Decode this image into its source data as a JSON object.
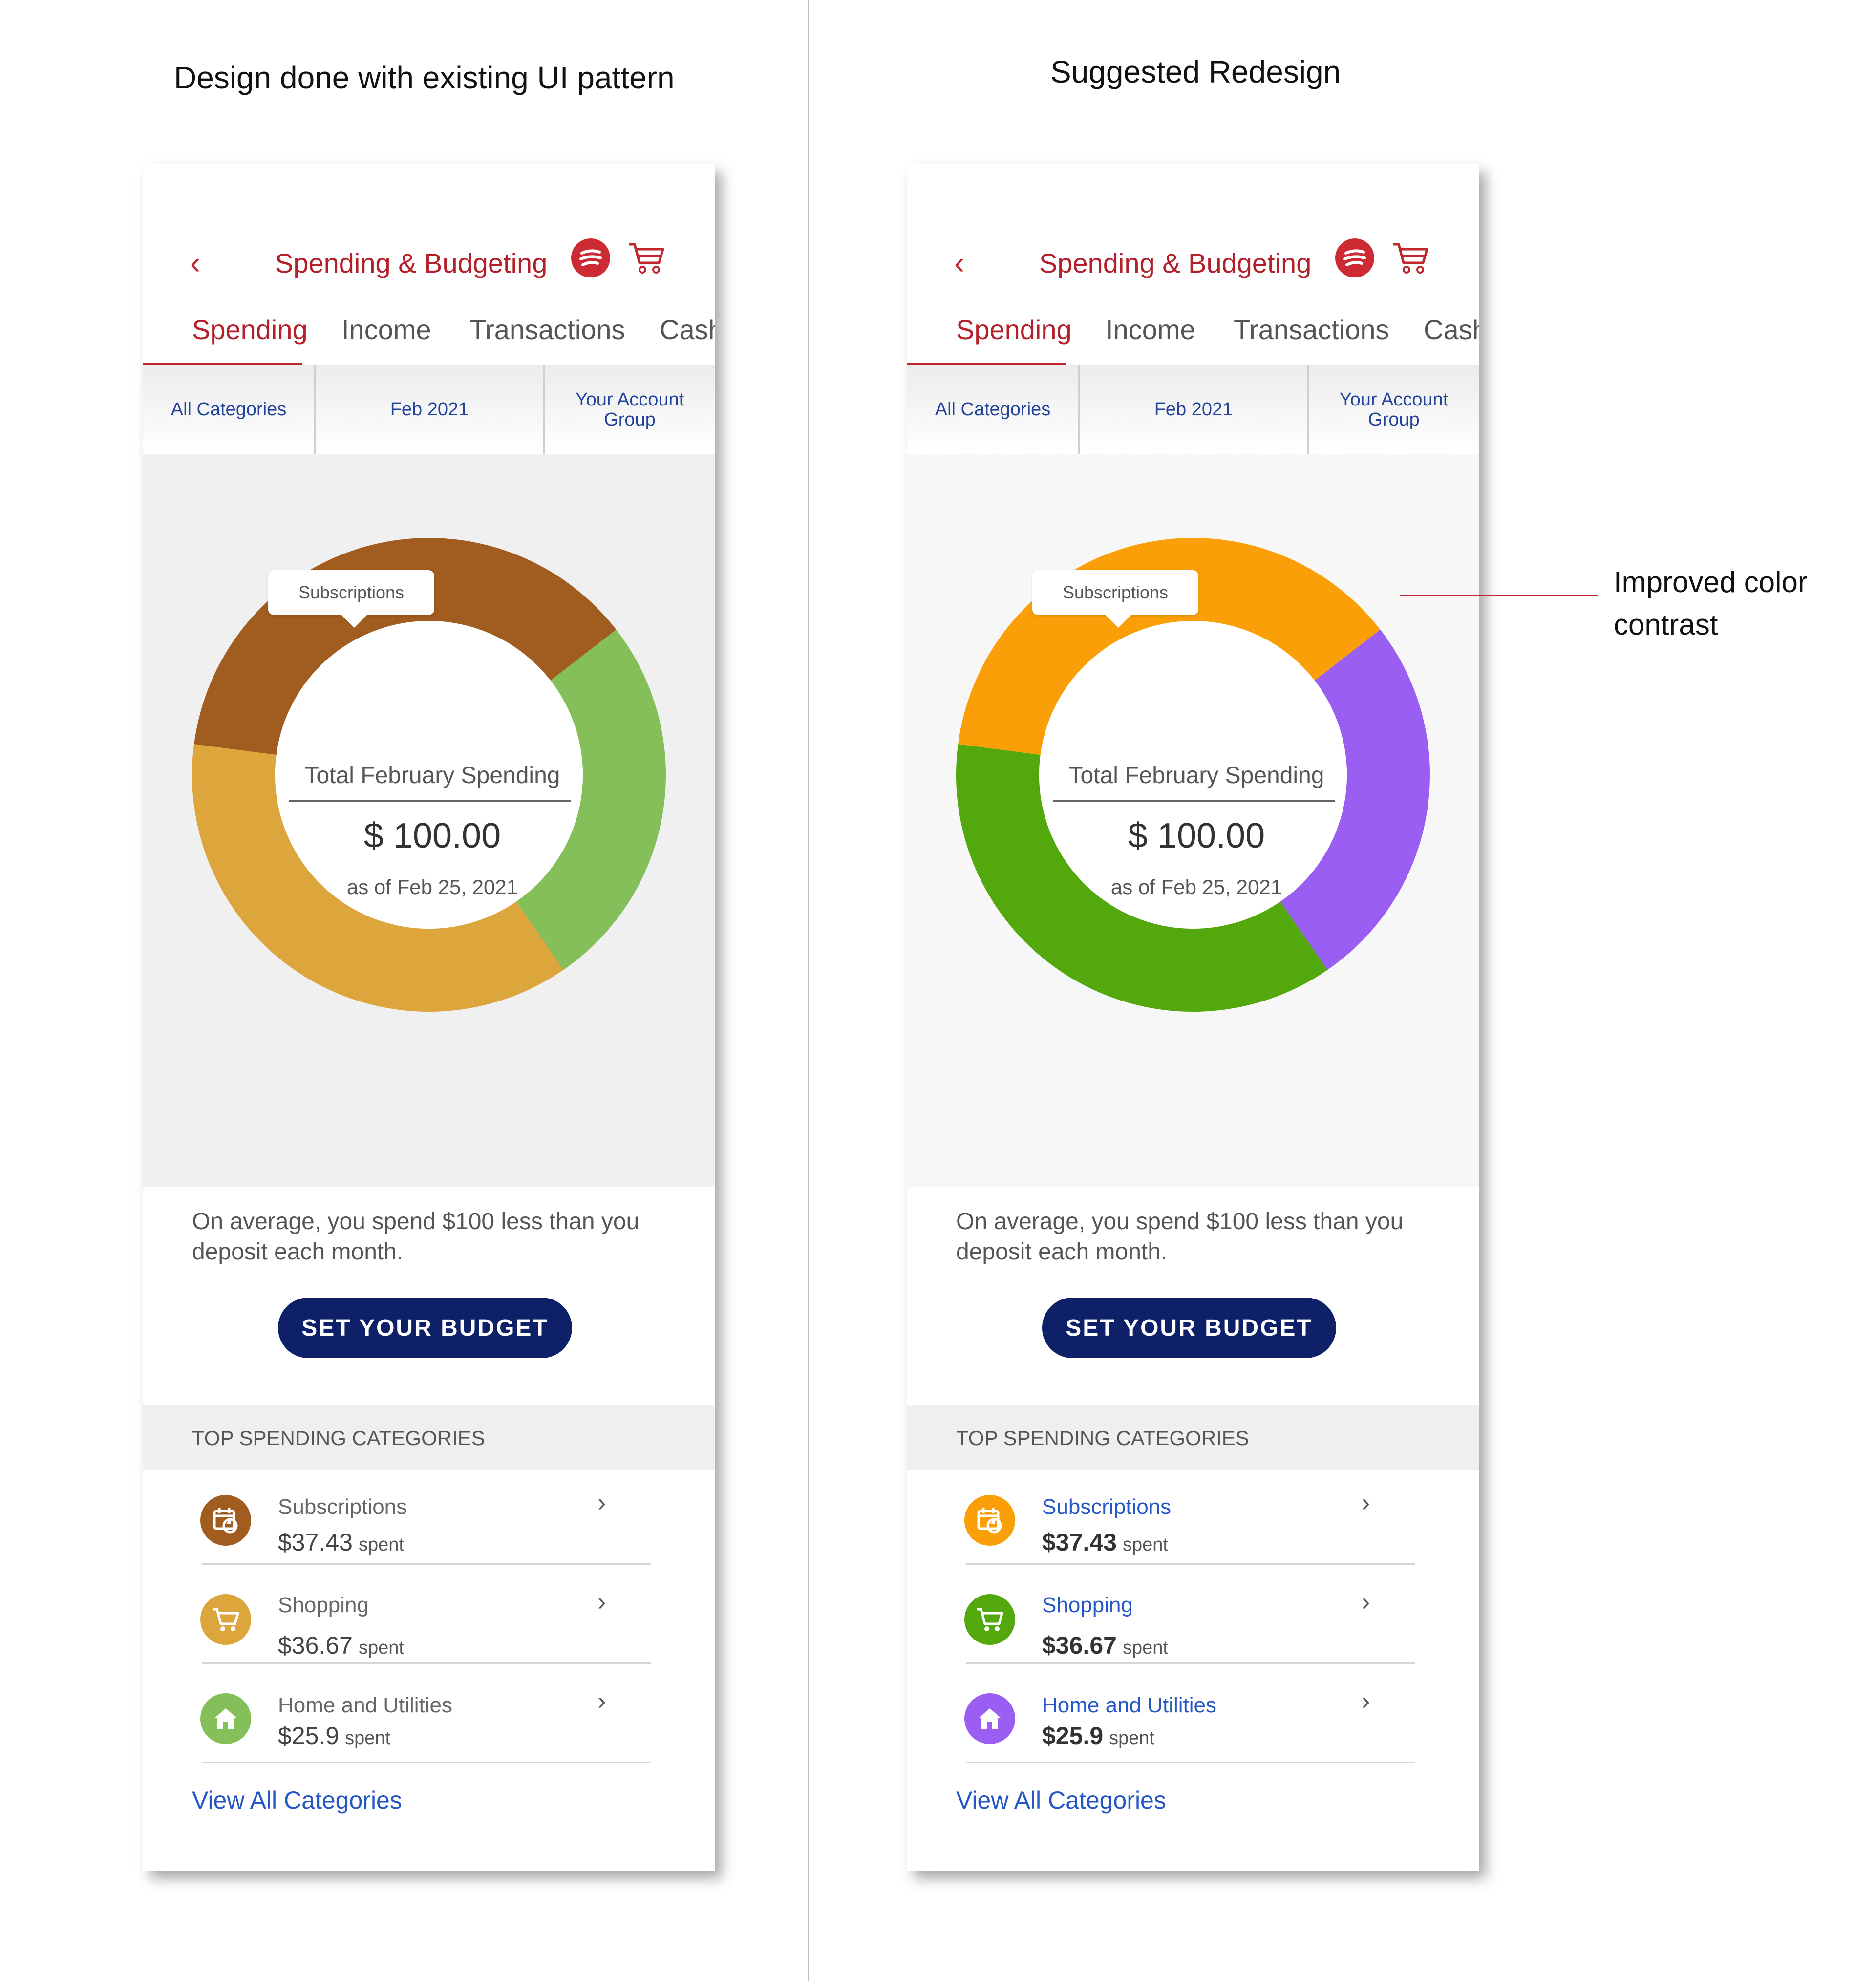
{
  "headings": {
    "left": "Design done with existing UI pattern",
    "right": "Suggested Redesign"
  },
  "annotation": "Improved color contrast",
  "app": {
    "back_icon": "chevron-left-icon",
    "title": "Spending & Budgeting",
    "brand_icon": "brand-logo-icon",
    "cart_icon": "cart-icon",
    "tabs": [
      "Spending",
      "Income",
      "Transactions",
      "Cash"
    ],
    "active_tab": "Spending",
    "filters": [
      "All Categories",
      "Feb 2021",
      "Your Account Group"
    ],
    "tooltip": "Subscriptions",
    "center_label": "Total February Spending",
    "center_amount": "$ 100.00",
    "center_date": "as of  Feb 25, 2021",
    "average_text": "On average, you spend $100 less than you deposit each month.",
    "budget_button": "SET YOUR BUDGET",
    "categories_header": "TOP SPENDING CATEGORIES",
    "categories": [
      {
        "name": "Subscriptions",
        "amount": "$37.43",
        "spent": "spent",
        "icon": "calendar-refresh-icon"
      },
      {
        "name": "Shopping",
        "amount": "$36.67",
        "spent": "spent",
        "icon": "cart-icon"
      },
      {
        "name": "Home and Utilities",
        "amount": "$25.9",
        "spent": "spent",
        "icon": "home-icon"
      }
    ],
    "view_all": "View All Categories"
  },
  "colors": {
    "brand_red": "#b3202a",
    "button_navy": "#0e2068",
    "link_blue": "#2457c5",
    "existing_palette": {
      "subscriptions": "#a15c1f",
      "shopping": "#dca63c",
      "home": "#84bf5a"
    },
    "redesign_palette": {
      "subscriptions": "#fa9f07",
      "shopping": "#52a80c",
      "home": "#9b5ef2"
    }
  },
  "chart_data": [
    {
      "type": "pie",
      "variant": "donut",
      "panel": "existing",
      "categories": [
        "Subscriptions",
        "Shopping",
        "Home and Utilities"
      ],
      "values": [
        37.43,
        36.67,
        25.9
      ],
      "colors": [
        "#a15c1f",
        "#dca63c",
        "#84bf5a"
      ]
    },
    {
      "type": "pie",
      "variant": "donut",
      "panel": "redesign",
      "categories": [
        "Subscriptions",
        "Shopping",
        "Home and Utilities"
      ],
      "values": [
        37.43,
        36.67,
        25.9
      ],
      "colors": [
        "#fa9f07",
        "#52a80c",
        "#9b5ef2"
      ]
    }
  ]
}
